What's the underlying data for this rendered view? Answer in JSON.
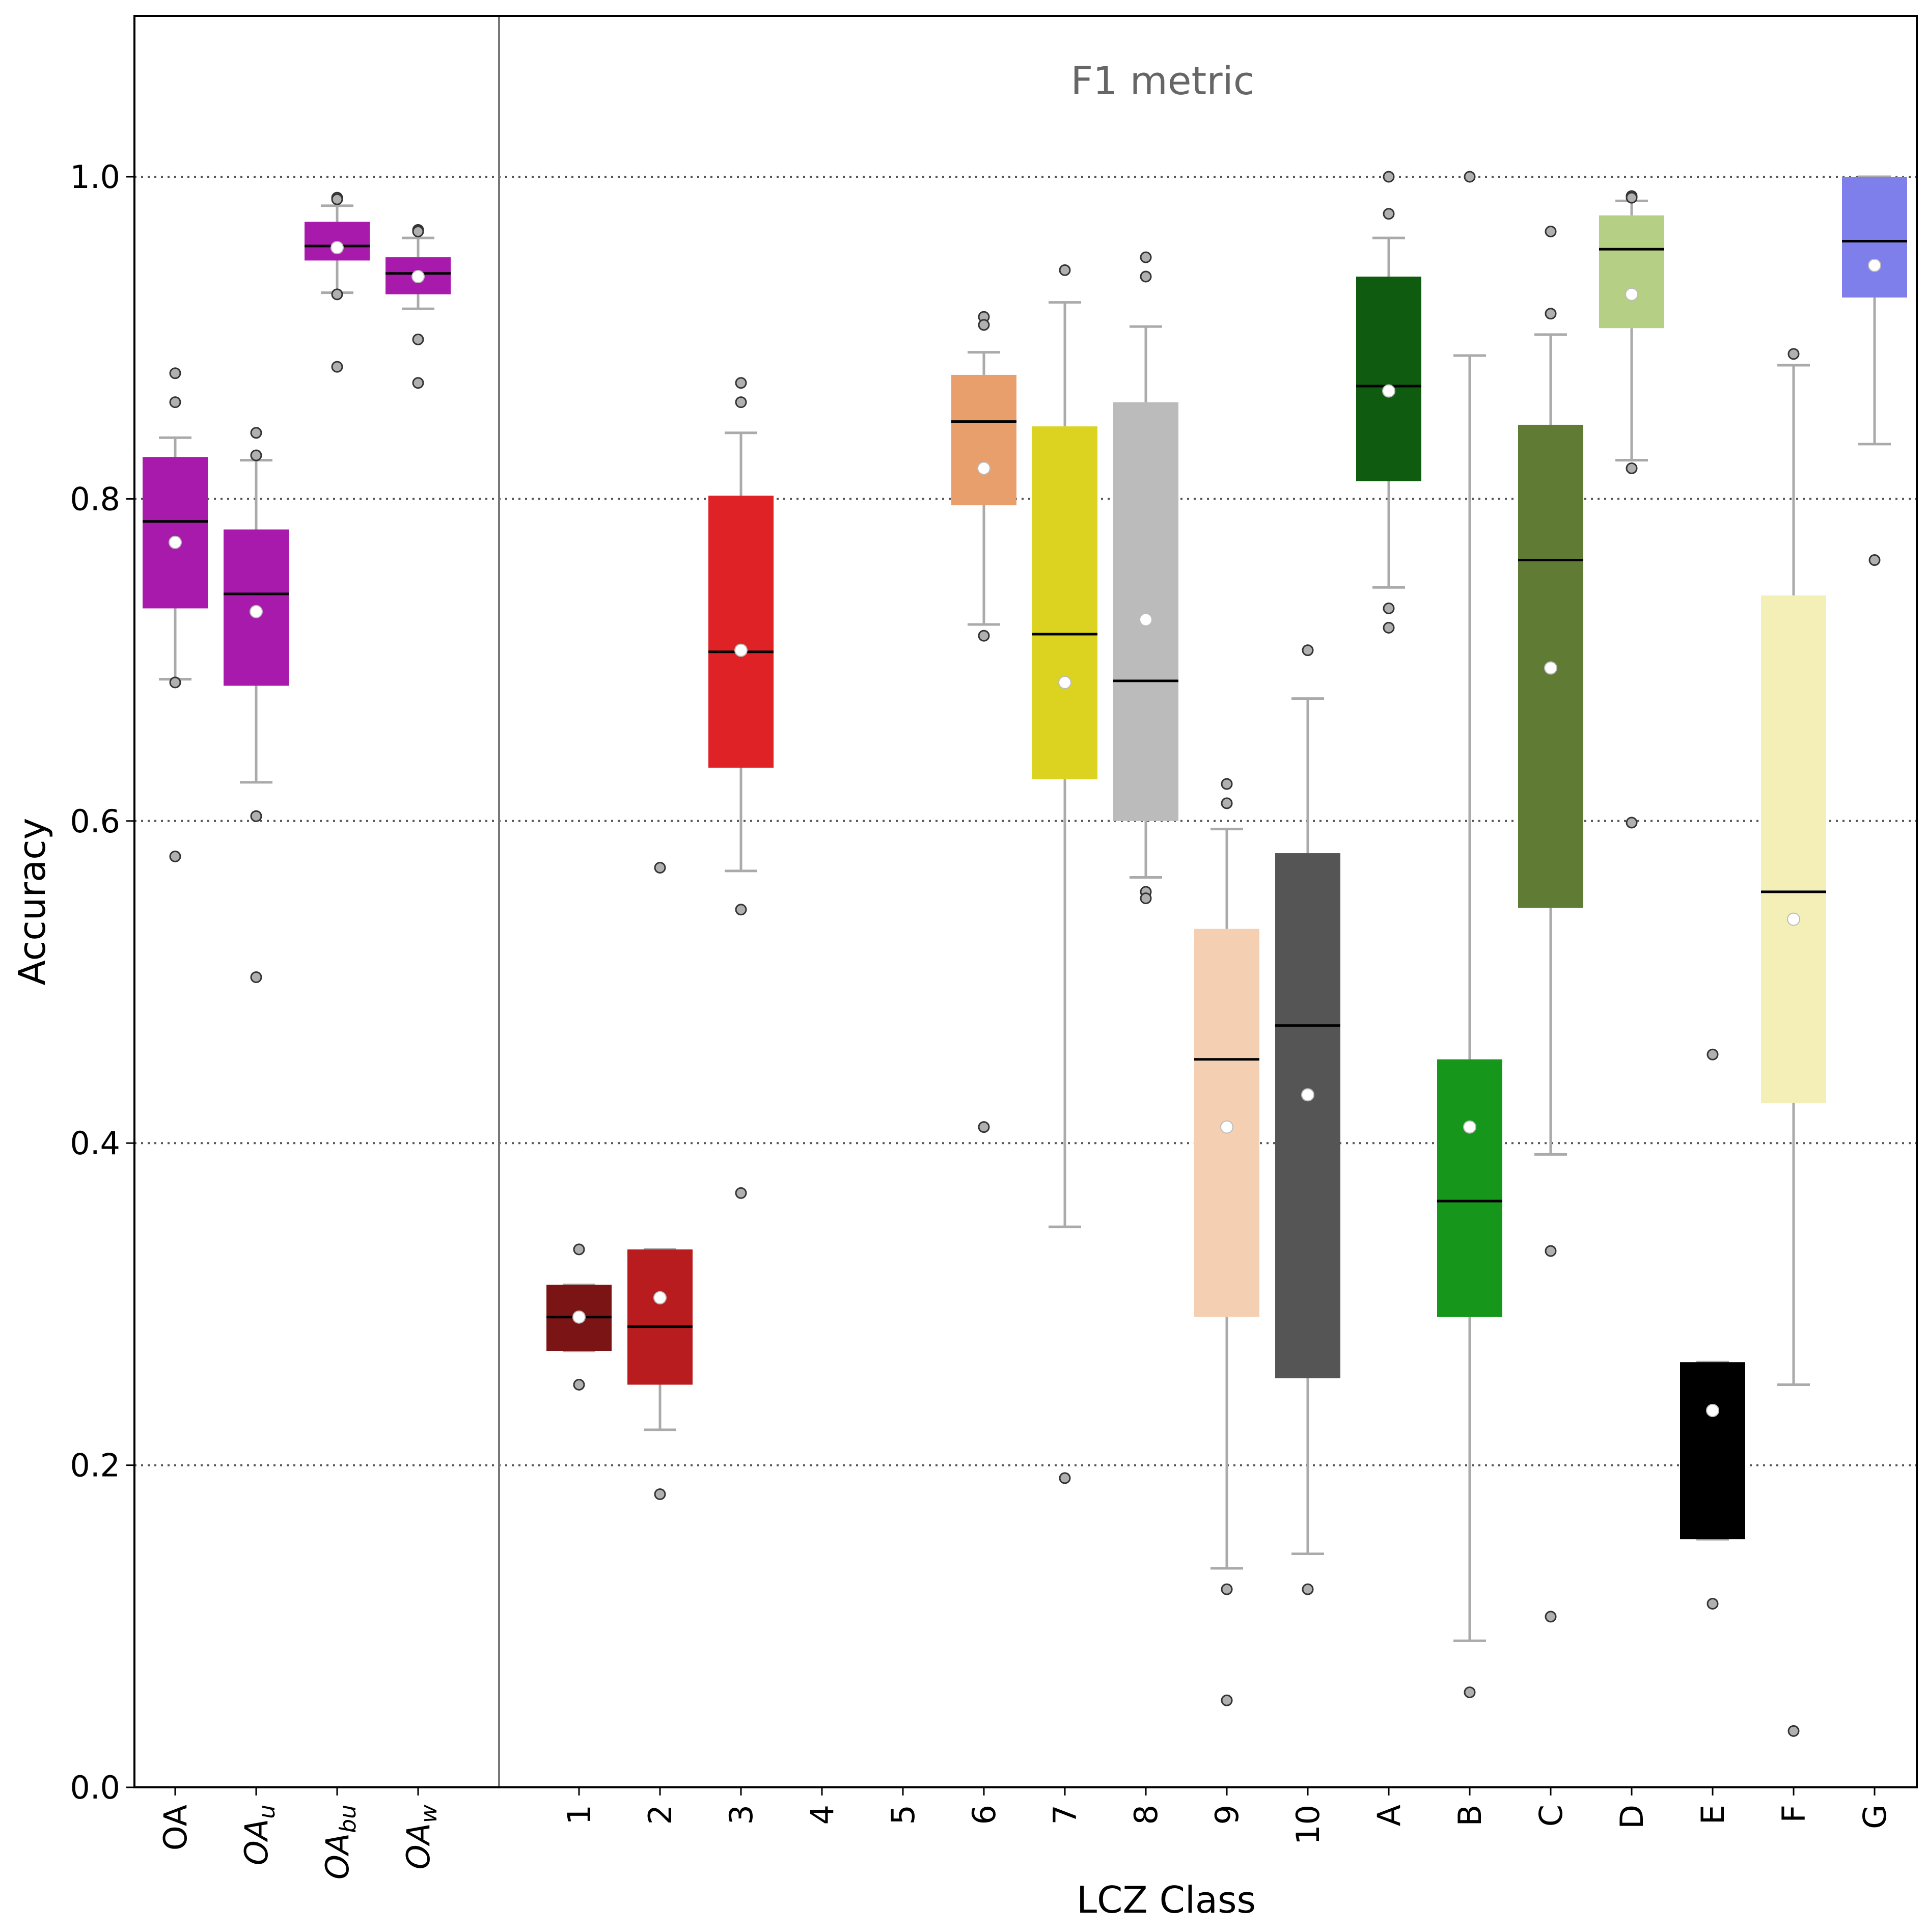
{
  "chart_data": {
    "type": "box",
    "title": "F1 metric",
    "xlabel": "LCZ Class",
    "ylabel": "Accuracy",
    "ylim": [
      0.0,
      1.1
    ],
    "yticks": [
      "0.0",
      "0.2",
      "0.4",
      "0.6",
      "0.8",
      "1.0"
    ],
    "grid": "horizontal dotted at 0.2, 0.4, 0.6, 0.8, 1.0",
    "categories": [
      {
        "label": "OA",
        "sub": "",
        "color": "#a71aab",
        "q1": 0.732,
        "median": 0.786,
        "q3": 0.826,
        "wlo": 0.688,
        "whi": 0.838,
        "mean": 0.773,
        "outliers": [
          0.878,
          0.86,
          0.686,
          0.578
        ]
      },
      {
        "label": "OA",
        "sub": "u",
        "color": "#a71aab",
        "q1": 0.684,
        "median": 0.741,
        "q3": 0.781,
        "wlo": 0.624,
        "whi": 0.824,
        "mean": 0.73,
        "outliers": [
          0.841,
          0.827,
          0.603,
          0.503
        ]
      },
      {
        "label": "OA",
        "sub": "bu",
        "color": "#a71aab",
        "q1": 0.948,
        "median": 0.957,
        "q3": 0.972,
        "wlo": 0.928,
        "whi": 0.982,
        "mean": 0.956,
        "outliers": [
          0.987,
          0.986,
          0.927,
          0.882
        ]
      },
      {
        "label": "OA",
        "sub": "w",
        "color": "#a71aab",
        "q1": 0.927,
        "median": 0.94,
        "q3": 0.95,
        "wlo": 0.918,
        "whi": 0.962,
        "mean": 0.938,
        "outliers": [
          0.967,
          0.966,
          0.899,
          0.872
        ]
      },
      {
        "label": "1",
        "sub": "",
        "color": "#7b1414",
        "q1": 0.271,
        "median": 0.292,
        "q3": 0.312,
        "wlo": 0.271,
        "whi": 0.312,
        "mean": 0.292,
        "outliers": [
          0.334,
          0.25
        ]
      },
      {
        "label": "2",
        "sub": "",
        "color": "#b81c1f",
        "q1": 0.25,
        "median": 0.286,
        "q3": 0.334,
        "wlo": 0.222,
        "whi": 0.334,
        "mean": 0.304,
        "outliers": [
          0.571,
          0.182
        ]
      },
      {
        "label": "3",
        "sub": "",
        "color": "#de2225",
        "q1": 0.633,
        "median": 0.705,
        "q3": 0.802,
        "wlo": 0.569,
        "whi": 0.841,
        "mean": 0.706,
        "outliers": [
          0.872,
          0.86,
          0.545,
          0.369
        ]
      },
      {
        "label": "4",
        "sub": "",
        "color": "#000000",
        "empty": true
      },
      {
        "label": "5",
        "sub": "",
        "color": "#000000",
        "empty": true
      },
      {
        "label": "6",
        "sub": "",
        "color": "#e89f6b",
        "q1": 0.796,
        "median": 0.848,
        "q3": 0.877,
        "wlo": 0.722,
        "whi": 0.891,
        "mean": 0.819,
        "outliers": [
          0.913,
          0.908,
          0.715,
          0.41
        ]
      },
      {
        "label": "7",
        "sub": "",
        "color": "#dbd31f",
        "q1": 0.626,
        "median": 0.716,
        "q3": 0.845,
        "wlo": 0.348,
        "whi": 0.922,
        "mean": 0.686,
        "outliers": [
          0.942,
          0.192
        ]
      },
      {
        "label": "8",
        "sub": "",
        "color": "#bbbbbb",
        "q1": 0.6,
        "median": 0.687,
        "q3": 0.86,
        "wlo": 0.565,
        "whi": 0.907,
        "mean": 0.725,
        "outliers": [
          0.95,
          0.938,
          0.556,
          0.552
        ]
      },
      {
        "label": "9",
        "sub": "",
        "color": "#f5cfb2",
        "q1": 0.292,
        "median": 0.452,
        "q3": 0.533,
        "wlo": 0.136,
        "whi": 0.595,
        "mean": 0.41,
        "outliers": [
          0.623,
          0.611,
          0.123,
          0.054
        ]
      },
      {
        "label": "10",
        "sub": "",
        "color": "#555555",
        "q1": 0.254,
        "median": 0.473,
        "q3": 0.58,
        "wlo": 0.145,
        "whi": 0.676,
        "mean": 0.43,
        "outliers": [
          0.706,
          0.123
        ]
      },
      {
        "label": "A",
        "sub": "",
        "color": "#0f5c10",
        "q1": 0.811,
        "median": 0.87,
        "q3": 0.938,
        "wlo": 0.745,
        "whi": 0.962,
        "mean": 0.867,
        "outliers": [
          1.0,
          0.977,
          0.732,
          0.72
        ]
      },
      {
        "label": "B",
        "sub": "",
        "color": "#16961a",
        "q1": 0.292,
        "median": 0.364,
        "q3": 0.452,
        "wlo": 0.091,
        "whi": 0.889,
        "mean": 0.41,
        "outliers": [
          1.0,
          0.059
        ]
      },
      {
        "label": "C",
        "sub": "",
        "color": "#607b33",
        "q1": 0.546,
        "median": 0.762,
        "q3": 0.846,
        "wlo": 0.393,
        "whi": 0.902,
        "mean": 0.695,
        "outliers": [
          0.966,
          0.915,
          0.333,
          0.106
        ]
      },
      {
        "label": "D",
        "sub": "",
        "color": "#b5d084",
        "q1": 0.906,
        "median": 0.955,
        "q3": 0.976,
        "wlo": 0.824,
        "whi": 0.985,
        "mean": 0.927,
        "outliers": [
          0.988,
          0.987,
          0.819,
          0.599
        ]
      },
      {
        "label": "E",
        "sub": "",
        "color": "#000000",
        "q1": 0.154,
        "median": 0.182,
        "q3": 0.264,
        "wlo": 0.154,
        "whi": 0.264,
        "mean": 0.234,
        "outliers": [
          0.455,
          0.114
        ]
      },
      {
        "label": "F",
        "sub": "",
        "color": "#f3efb7",
        "q1": 0.425,
        "median": 0.556,
        "q3": 0.74,
        "wlo": 0.25,
        "whi": 0.883,
        "mean": 0.539,
        "outliers": [
          0.89,
          0.035
        ]
      },
      {
        "label": "G",
        "sub": "",
        "color": "#7f7fec",
        "q1": 0.925,
        "median": 0.96,
        "q3": 1.0,
        "wlo": 0.834,
        "whi": 1.0,
        "mean": 0.945,
        "outliers": [
          0.762
        ]
      }
    ]
  }
}
